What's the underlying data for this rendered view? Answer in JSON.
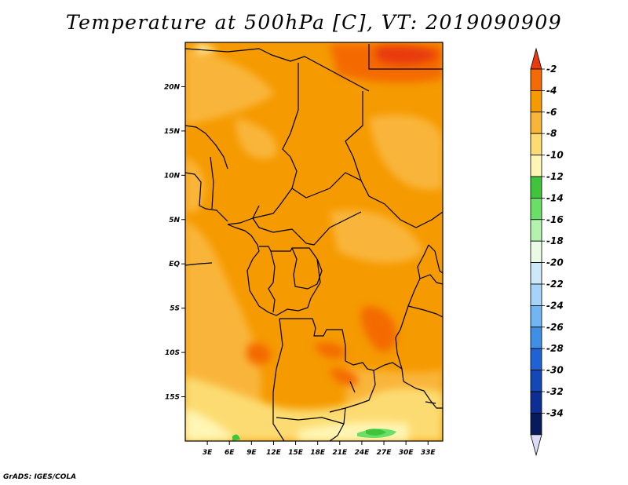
{
  "title": "Temperature at 500hPa [C], VT: 2019090909",
  "credit": "GrADS: IGES/COLA",
  "map": {
    "lon_range": [
      0,
      35
    ],
    "lat_range": [
      -20,
      25
    ],
    "lon_ticks": [
      "3E",
      "6E",
      "9E",
      "12E",
      "15E",
      "18E",
      "21E",
      "24E",
      "27E",
      "30E",
      "33E"
    ],
    "lon_tick_values": [
      3,
      6,
      9,
      12,
      15,
      18,
      21,
      24,
      27,
      30,
      33
    ],
    "lat_ticks": [
      "20N",
      "15N",
      "10N",
      "5N",
      "EQ",
      "5S",
      "10S",
      "15S"
    ],
    "lat_tick_values": [
      20,
      15,
      10,
      5,
      0,
      -5,
      -10,
      -15
    ]
  },
  "colorbar": {
    "labels": [
      "-2",
      "-4",
      "-6",
      "-8",
      "-10",
      "-12",
      "-14",
      "-16",
      "-18",
      "-20",
      "-22",
      "-24",
      "-26",
      "-28",
      "-30",
      "-32",
      "-34"
    ],
    "colors_top_to_bottom": [
      "#e83a0e",
      "#f46a04",
      "#f59a00",
      "#f9b53a",
      "#fcdc72",
      "#fff5b4",
      "#3fc43c",
      "#6adf68",
      "#b4f3ad",
      "#e9fbe4",
      "#cde8f9",
      "#a5d4f8",
      "#73b5f2",
      "#3f8fe6",
      "#1f62d6",
      "#1448b7",
      "#0d2e94",
      "#071a5c",
      "#dcdcf6"
    ],
    "colors_note": "first = top triangle, last = bottom triangle"
  },
  "chart_data": {
    "type": "heatmap",
    "title": "Temperature at 500hPa [C], VT: 2019090909",
    "xlabel": "",
    "ylabel": "",
    "x_range": [
      0,
      35
    ],
    "y_range": [
      -20,
      25
    ],
    "levels": [
      -34,
      -32,
      -30,
      -28,
      -26,
      -24,
      -22,
      -20,
      -18,
      -16,
      -14,
      -12,
      -10,
      -8,
      -6,
      -4,
      -2
    ],
    "field_regions": [
      {
        "description": "background",
        "value_range": [
          -6,
          -4
        ]
      },
      {
        "lon": [
          20,
          35
        ],
        "lat": [
          22,
          25
        ],
        "value_range": [
          -4,
          -2
        ]
      },
      {
        "lon": [
          23,
          28
        ],
        "lat": [
          -11,
          -5
        ],
        "value_range": [
          -4,
          -2
        ]
      },
      {
        "lon": [
          8,
          11
        ],
        "lat": [
          -11,
          -9
        ],
        "value_range": [
          -4,
          -2
        ]
      },
      {
        "lon": [
          0,
          4
        ],
        "lat": [
          -1,
          22
        ],
        "value_range": [
          -8,
          -6
        ]
      },
      {
        "lon": [
          0,
          35
        ],
        "lat": [
          -20,
          -14
        ],
        "value_range": [
          -10,
          -8
        ]
      },
      {
        "lon": [
          0,
          8
        ],
        "lat": [
          -20,
          -17
        ],
        "value_range": [
          -12,
          -10
        ]
      },
      {
        "lon": [
          22,
          28
        ],
        "lat": [
          -20,
          -18
        ],
        "value_range": [
          -14,
          -12
        ]
      }
    ]
  }
}
